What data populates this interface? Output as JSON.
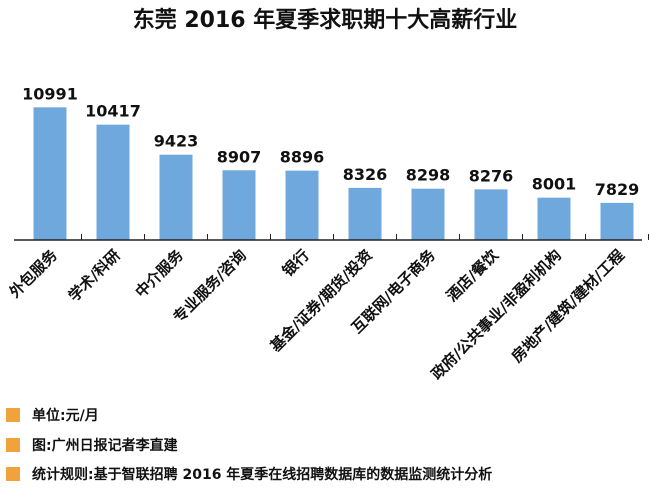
{
  "chart_data": {
    "type": "bar",
    "title": "东莞 2016 年夏季求职期十大高薪行业",
    "categories": [
      "外包服务",
      "学术/科研",
      "中介服务",
      "专业服务/咨询",
      "银行",
      "基金/证券/期货/投资",
      "互联网/电子商务",
      "酒店/餐饮",
      "政府/公共事业/非盈利机构",
      "房地产/建筑/建材/工程"
    ],
    "values": [
      10991,
      10417,
      9423,
      8907,
      8896,
      8326,
      8298,
      8276,
      8001,
      7829
    ],
    "value_labels": [
      "10991",
      "10417",
      "9423",
      "8907",
      "8896",
      "8326",
      "8298",
      "8276",
      "8001",
      "7829"
    ],
    "ylim": [
      6600,
      11300
    ],
    "grid": false,
    "bar_color": "#6FA8DC",
    "axis_color": "#222222"
  },
  "footnotes": [
    {
      "text": "单位:元/月"
    },
    {
      "text": "图:广州日报记者李直建"
    },
    {
      "text": "统计规则:基于智联招聘 2016 年夏季在线招聘数据库的数据监测统计分析"
    }
  ],
  "colors": {
    "footnote_marker": "#F0A23C"
  }
}
